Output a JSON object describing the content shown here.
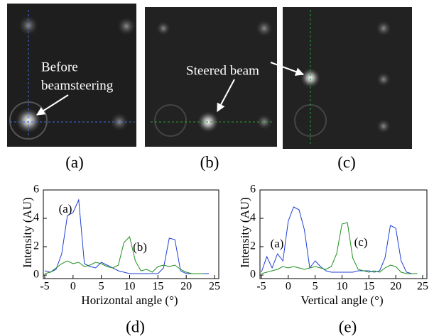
{
  "images": [
    {
      "label": "(a)",
      "annotation": [
        "Before",
        "beamsteering"
      ]
    },
    {
      "label": "(b)",
      "annotation": [
        "Steered beam"
      ]
    },
    {
      "label": "(c)"
    }
  ],
  "chart_data": [
    {
      "type": "line",
      "label": "(d)",
      "x_label": "Horizontal angle (°)",
      "y_label": "Intensity (AU)",
      "x": [
        -5,
        -4,
        -3,
        -2,
        -1,
        0,
        1,
        2,
        3,
        4,
        5,
        6,
        7,
        8,
        9,
        10,
        11,
        12,
        13,
        14,
        15,
        16,
        17,
        18,
        19,
        20,
        21,
        22,
        23,
        24,
        25
      ],
      "series": [
        {
          "name": "(a)",
          "color": "#1f3fd6",
          "values": [
            0.3,
            0.2,
            0.4,
            1.5,
            4.2,
            4.4,
            5.3,
            0.8,
            0.6,
            0.5,
            0.9,
            0.7,
            0.5,
            0.3,
            0.2,
            0.1,
            0.1,
            0.1,
            0.1,
            0.1,
            0.1,
            0.5,
            2.6,
            2.5,
            0.3,
            0.1,
            0.1,
            0.1,
            0.1,
            0.1,
            null
          ]
        },
        {
          "name": "(b)",
          "color": "#1f8f1f",
          "values": [
            0.1,
            0.2,
            0.5,
            0.8,
            1.0,
            0.8,
            0.9,
            0.6,
            0.7,
            0.9,
            0.8,
            0.6,
            0.5,
            0.7,
            2.3,
            2.7,
            1.0,
            0.3,
            0.4,
            0.2,
            0.6,
            0.7,
            0.6,
            0.7,
            0.4,
            0.2,
            0.1,
            0.1,
            0.1,
            null,
            null
          ]
        }
      ],
      "xlim": [
        -5,
        25
      ],
      "ylim": [
        0,
        6
      ],
      "xticks": [
        -5,
        0,
        5,
        10,
        15,
        20,
        25
      ],
      "yticks": [
        0,
        2,
        4,
        6
      ]
    },
    {
      "type": "line",
      "label": "(e)",
      "x_label": "Vertical angle (°)",
      "y_label": "Intensity (AU)",
      "x": [
        -5,
        -4,
        -3,
        -2,
        -1,
        0,
        1,
        2,
        3,
        4,
        5,
        6,
        7,
        8,
        9,
        10,
        11,
        12,
        13,
        14,
        15,
        16,
        17,
        18,
        19,
        20,
        21,
        22,
        23,
        24,
        25
      ],
      "series": [
        {
          "name": "(a)",
          "color": "#1f3fd6",
          "values": [
            0.2,
            1.3,
            0.5,
            1.5,
            1.0,
            3.8,
            4.8,
            4.6,
            3.2,
            0.5,
            1.0,
            0.6,
            0.3,
            0.2,
            0.2,
            0.2,
            0.2,
            0.2,
            0.3,
            0.3,
            0.3,
            0.2,
            0.3,
            1.2,
            3.5,
            3.3,
            1.0,
            0.2,
            0.1,
            0.1,
            null
          ]
        },
        {
          "name": "(c)",
          "color": "#1f8f1f",
          "values": [
            0.1,
            0.2,
            0.3,
            0.4,
            0.6,
            0.5,
            0.6,
            0.5,
            0.4,
            0.5,
            0.6,
            0.5,
            0.4,
            0.6,
            1.5,
            3.6,
            3.7,
            1.2,
            0.4,
            0.3,
            0.2,
            0.3,
            0.2,
            0.5,
            0.7,
            0.6,
            0.2,
            0.1,
            0.1,
            0.1,
            null
          ]
        }
      ],
      "xlim": [
        -5,
        25
      ],
      "ylim": [
        0,
        6
      ],
      "xticks": [
        -5,
        0,
        5,
        10,
        15,
        20,
        25
      ],
      "yticks": [
        0,
        2,
        4,
        6
      ]
    }
  ]
}
